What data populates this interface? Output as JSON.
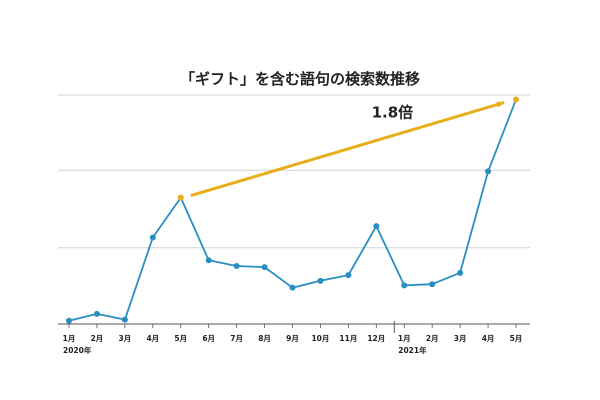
{
  "colors": {
    "series": "#2a8ec2",
    "highlight": "#e8ae1a",
    "grid": "#d2d2d2",
    "axis": "#555555",
    "text": "#222222"
  },
  "chart_data": {
    "type": "line",
    "title": "「ギフト」を含む語句の検索数推移",
    "xlabel": "",
    "ylabel": "",
    "ylim": [
      0,
      100
    ],
    "grid": true,
    "legend": "none",
    "x": [
      "1月",
      "2月",
      "3月",
      "4月",
      "5月",
      "6月",
      "7月",
      "8月",
      "9月",
      "10月",
      "11月",
      "12月",
      "1月",
      "2月",
      "3月",
      "4月",
      "5月"
    ],
    "year_labels": [
      {
        "index": 0,
        "label": "2020年"
      },
      {
        "index": 12,
        "label": "2021年"
      }
    ],
    "series": [
      {
        "values": [
          1,
          4,
          1.5,
          37.5,
          55,
          27.5,
          25,
          24.5,
          15.5,
          18.5,
          21,
          42.5,
          16.5,
          17,
          22,
          66.5,
          98
        ]
      }
    ],
    "annotation": {
      "text": "1.8倍",
      "from_index": 4,
      "to_index": 16
    }
  }
}
